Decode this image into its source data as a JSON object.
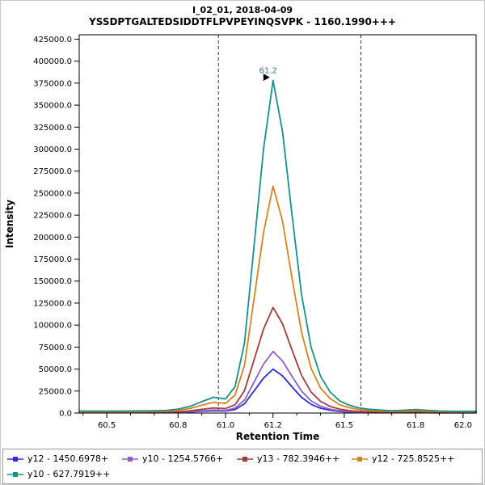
{
  "title": {
    "line1": "I_02_01, 2018-04-09",
    "line2": "YSSDPTGALTEDSIDDTFLPVPEYINQSVPK - 1160.1990+++"
  },
  "chart_data": {
    "type": "line",
    "title": "I_02_01, 2018-04-09",
    "subtitle": "YSSDPTGALTEDSIDDTFLPVPEYINQSVPK - 1160.1990+++",
    "xlabel": "Retention Time",
    "ylabel": "Intensity",
    "xlim": [
      60.384,
      62.055
    ],
    "ylim": [
      0,
      430000
    ],
    "grid": false,
    "legend_position": "bottom",
    "yticks": [
      "0.0",
      "25000.0",
      "50000.0",
      "75000.0",
      "100000.0",
      "125000.0",
      "150000.0",
      "175000.0",
      "200000.0",
      "225000.0",
      "250000.0",
      "275000.0",
      "300000.0",
      "325000.0",
      "350000.0",
      "375000.0",
      "400000.0",
      "425000.0"
    ],
    "xticks": [
      "60.5",
      "60.8",
      "61.0",
      "61.2",
      "61.5",
      "61.8",
      "62.0"
    ],
    "xticks_minor": [
      60.4,
      60.6,
      60.7,
      60.9,
      61.1,
      61.3,
      61.4,
      61.6,
      61.7,
      61.9
    ],
    "integration_boundaries": [
      60.97,
      61.57
    ],
    "boundary_color": "#333333",
    "peak_annotation": {
      "x": 61.2,
      "y": 378000,
      "label": "61.2",
      "color": "#33718f",
      "arrow_color": "#000000"
    },
    "x": [
      60.385,
      60.4,
      60.45,
      60.5,
      60.55,
      60.6,
      60.65,
      60.7,
      60.75,
      60.8,
      60.85,
      60.9,
      60.95,
      61.0,
      61.04,
      61.08,
      61.12,
      61.16,
      61.2,
      61.24,
      61.28,
      61.32,
      61.36,
      61.4,
      61.44,
      61.48,
      61.52,
      61.56,
      61.6,
      61.65,
      61.7,
      61.75,
      61.8,
      61.85,
      61.9,
      61.95,
      62.0,
      62.05,
      62.055
    ],
    "series": [
      {
        "name": "y12 - 1450.6978+",
        "color": "#2d2dd1",
        "values": [
          350,
          350,
          350,
          350,
          350,
          370,
          390,
          410,
          450,
          700,
          1150,
          1900,
          2600,
          2300,
          4000,
          10600,
          25100,
          39700,
          50000,
          42300,
          29800,
          17900,
          9900,
          5550,
          3200,
          1850,
          1200,
          790,
          590,
          450,
          360,
          420,
          530,
          410,
          320,
          260,
          260,
          260,
          260
        ]
      },
      {
        "name": "y10 - 1254.5766+",
        "color": "#8d5fc8",
        "values": [
          450,
          450,
          450,
          450,
          450,
          470,
          490,
          520,
          570,
          900,
          1500,
          2500,
          3400,
          3000,
          5600,
          14800,
          35200,
          55600,
          70000,
          59200,
          41700,
          25000,
          13900,
          7800,
          4450,
          2600,
          1650,
          1100,
          830,
          630,
          500,
          590,
          740,
          570,
          440,
          370,
          370,
          370,
          370
        ]
      },
      {
        "name": "y13 - 782.3946++",
        "color": "#a23c3c",
        "values": [
          750,
          750,
          750,
          750,
          750,
          780,
          820,
          870,
          950,
          1500,
          2500,
          4200,
          5800,
          5100,
          9500,
          25500,
          60500,
          95500,
          120000,
          101500,
          71500,
          43000,
          24000,
          13300,
          7600,
          4500,
          2850,
          1900,
          1450,
          1100,
          870,
          1000,
          1300,
          1000,
          780,
          640,
          640,
          640,
          640
        ]
      },
      {
        "name": "y12 - 725.8525++",
        "color": "#d9821f",
        "values": [
          1500,
          1500,
          1500,
          1500,
          1500,
          1550,
          1650,
          1750,
          1950,
          3100,
          5100,
          8900,
          12300,
          10900,
          20500,
          54500,
          130000,
          205000,
          258000,
          218000,
          153000,
          92000,
          51000,
          28500,
          16500,
          9600,
          6100,
          4100,
          3100,
          2300,
          1850,
          2200,
          2750,
          2100,
          1650,
          1400,
          1400,
          1400,
          1400
        ]
      },
      {
        "name": "y10 - 627.7919++",
        "color": "#17918b",
        "values": [
          2300,
          2300,
          2300,
          2300,
          2300,
          2400,
          2500,
          2600,
          2900,
          4500,
          7500,
          13000,
          18000,
          16000,
          30000,
          80000,
          190000,
          300000,
          378000,
          320000,
          225000,
          135000,
          75000,
          42000,
          24000,
          14000,
          9000,
          6000,
          4500,
          3400,
          2700,
          3200,
          4000,
          3100,
          2400,
          2000,
          2000,
          2000,
          2000
        ]
      }
    ]
  }
}
